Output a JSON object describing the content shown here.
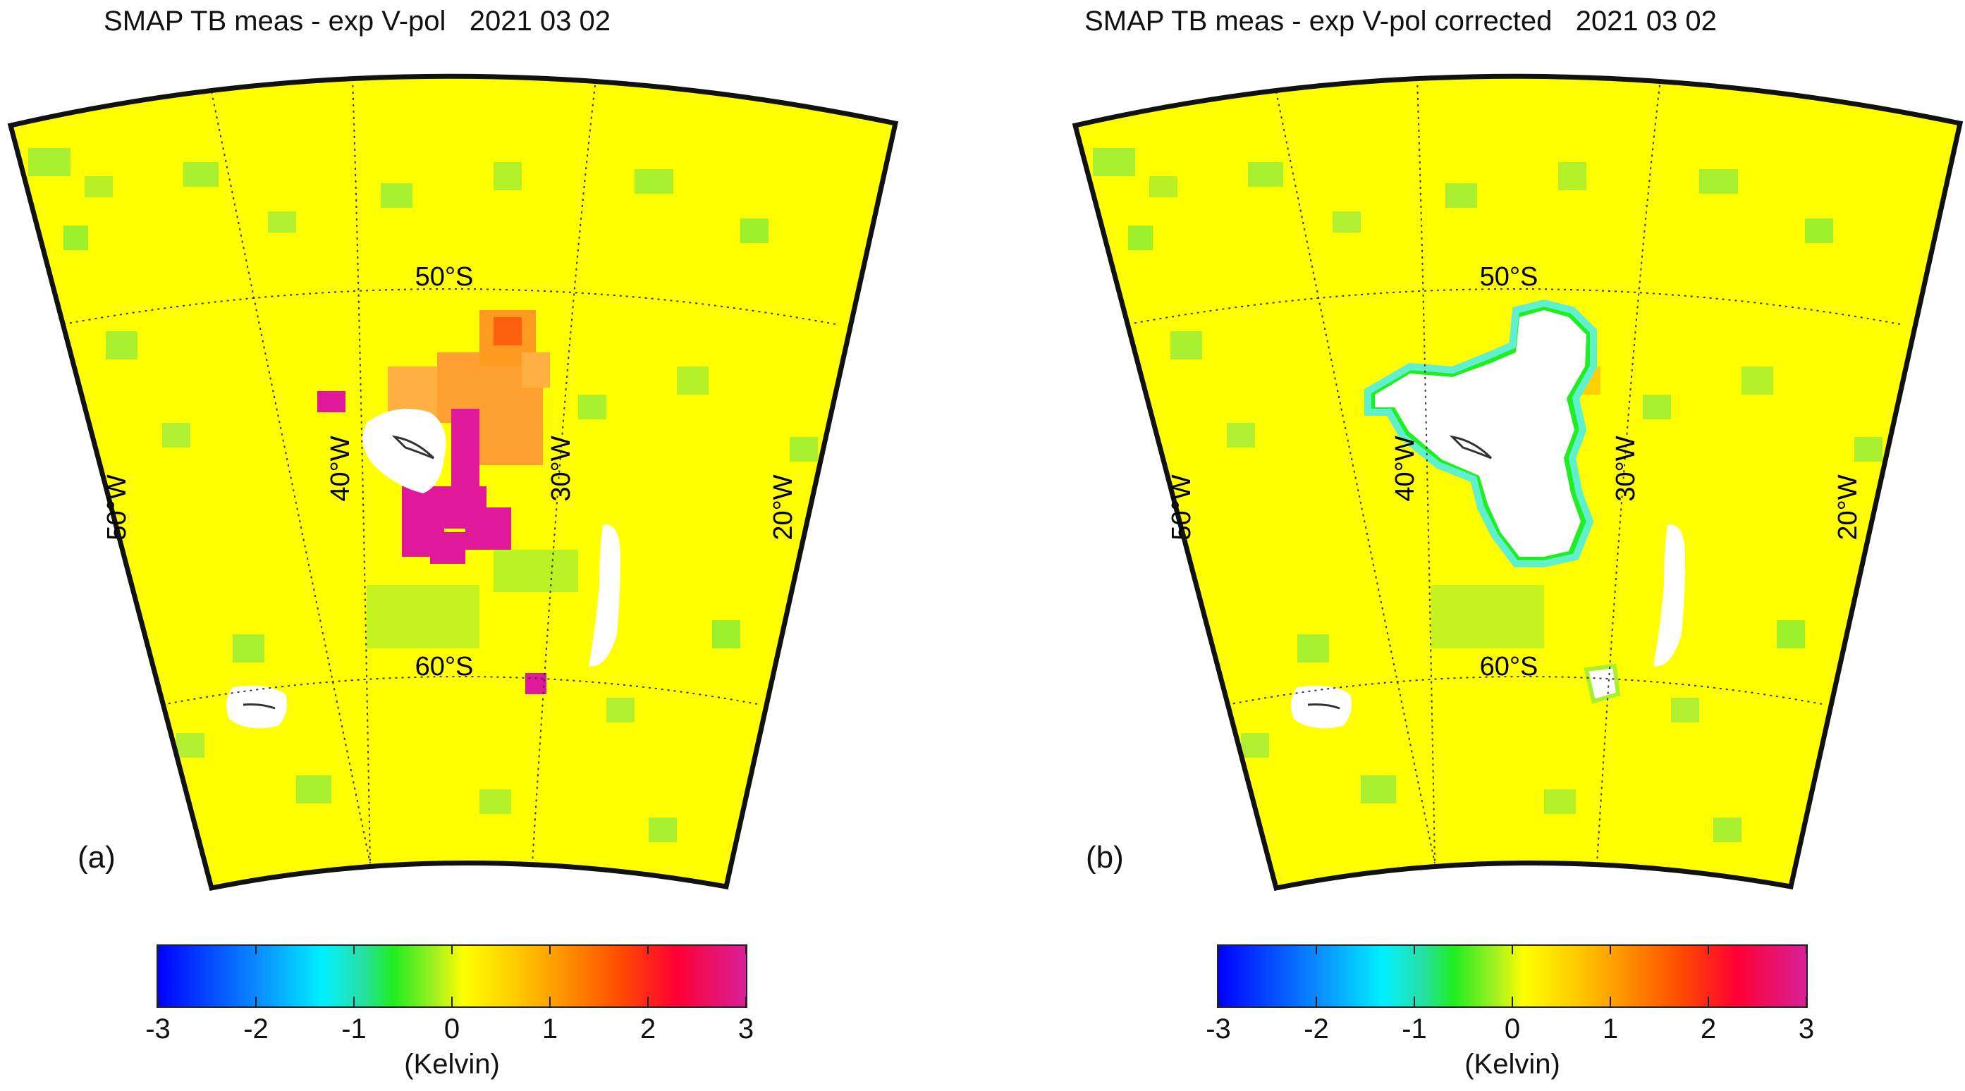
{
  "panels": [
    {
      "id": "a",
      "title": "SMAP TB meas - exp V-pol   2021 03 02",
      "panel_label": "(a)",
      "lat_labels": [
        "50°S",
        "60°S"
      ],
      "lon_labels": [
        "50°W",
        "40°W",
        "30°W",
        "20°W"
      ],
      "colorbar": {
        "ticks": [
          "-3",
          "-2",
          "-1",
          "0",
          "1",
          "2",
          "3"
        ],
        "unit": "(Kelvin)"
      }
    },
    {
      "id": "b",
      "title": "SMAP TB meas - exp V-pol corrected   2021 03 02",
      "panel_label": "(b)",
      "lat_labels": [
        "50°S",
        "60°S"
      ],
      "lon_labels": [
        "50°W",
        "40°W",
        "30°W",
        "20°W"
      ],
      "colorbar": {
        "ticks": [
          "-3",
          "-2",
          "-1",
          "0",
          "1",
          "2",
          "3"
        ],
        "unit": "(Kelvin)"
      }
    }
  ],
  "colors": {
    "background_field": "#ffff00",
    "positive_anomaly": "#e0189a",
    "moderate_anomaly": "#ff9a20",
    "negative_small": "#a8f030",
    "masked": "#ffffff"
  }
}
